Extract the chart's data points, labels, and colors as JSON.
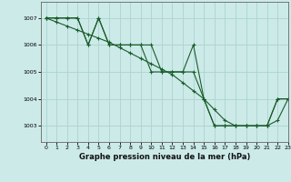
{
  "background_color": "#cceae8",
  "grid_color": "#aad4d0",
  "line_color": "#1a5c2a",
  "title": "Graphe pression niveau de la mer (hPa)",
  "xlim": [
    -0.5,
    23
  ],
  "ylim": [
    1002.4,
    1007.6
  ],
  "yticks": [
    1003,
    1004,
    1005,
    1006,
    1007
  ],
  "xticks": [
    0,
    1,
    2,
    3,
    4,
    5,
    6,
    7,
    8,
    9,
    10,
    11,
    12,
    13,
    14,
    15,
    16,
    17,
    18,
    19,
    20,
    21,
    22,
    23
  ],
  "s1": [
    1007,
    1007,
    1007,
    1007,
    1006,
    1007,
    1006,
    1006,
    1006,
    1006,
    1006,
    1005,
    1005,
    1005,
    1006,
    1004,
    1003,
    1003,
    1003,
    1003,
    1003,
    1003,
    1004,
    1004
  ],
  "s2": [
    1007,
    1007,
    1007,
    1007,
    1006,
    1007,
    1006,
    1006,
    1006,
    1006,
    1005,
    1005,
    1005,
    1005,
    1005,
    1004,
    1003,
    1003,
    1003,
    1003,
    1003,
    1003,
    1004,
    1004
  ],
  "s3": [
    1007,
    1006.85,
    1006.7,
    1006.55,
    1006.4,
    1006.25,
    1006.1,
    1005.9,
    1005.7,
    1005.5,
    1005.3,
    1005.1,
    1004.9,
    1004.6,
    1004.3,
    1004.0,
    1003.6,
    1003.2,
    1003.0,
    1003.0,
    1003.0,
    1003.0,
    1003.2,
    1004.0
  ]
}
